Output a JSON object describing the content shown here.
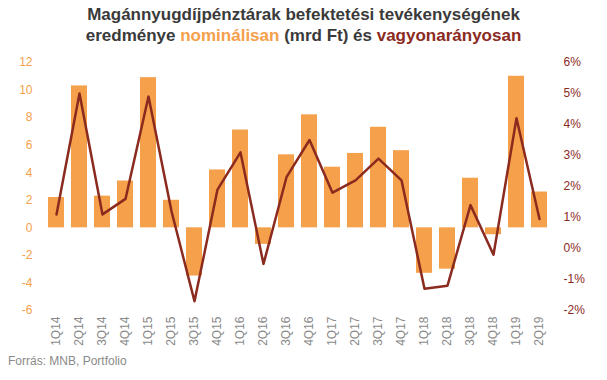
{
  "chart_data": {
    "type": "bar",
    "title": "Magánnyugdíjpénztárak befektetési tevékenységének eredménye nominálisan (mrd Ft) és vagyonarányosan",
    "caption": "Forrás: MNB, Portfolio",
    "categories": [
      "1Q14",
      "2Q14",
      "3Q14",
      "4Q14",
      "1Q15",
      "2Q15",
      "3Q15",
      "4Q15",
      "1Q16",
      "2Q16",
      "3Q16",
      "4Q16",
      "1Q17",
      "2Q17",
      "3Q17",
      "4Q17",
      "1Q18",
      "2Q18",
      "3Q18",
      "4Q18",
      "1Q19",
      "2Q19"
    ],
    "series": [
      {
        "name": "nominálisan",
        "type": "bar",
        "color": "#f5a04a",
        "values": [
          2.2,
          10.3,
          2.3,
          3.4,
          10.9,
          2.0,
          -3.5,
          4.2,
          7.1,
          -1.2,
          5.3,
          8.2,
          4.4,
          5.4,
          7.3,
          5.6,
          -3.3,
          -3.0,
          3.6,
          -0.5,
          11.0,
          2.6
        ]
      },
      {
        "name": "vagyonarányosan",
        "type": "line",
        "axis": "y2",
        "color": "#8b2a1e",
        "values": [
          1.1,
          5.0,
          1.1,
          1.6,
          4.9,
          1.2,
          -1.7,
          1.9,
          3.1,
          -0.5,
          2.3,
          3.5,
          1.8,
          2.2,
          2.9,
          2.2,
          -1.3,
          -1.2,
          1.4,
          -0.2,
          4.2,
          0.95
        ]
      }
    ],
    "ylim": [
      -6,
      12
    ],
    "yticks": [
      -6,
      -4,
      -2,
      0,
      2,
      4,
      6,
      8,
      10,
      12
    ],
    "y2lim": [
      -2,
      6
    ],
    "y2ticks": [
      {
        "value": -2,
        "label": "-2%"
      },
      {
        "value": -1,
        "label": "-1%"
      },
      {
        "value": 0,
        "label": "0%"
      },
      {
        "value": 1,
        "label": "1%"
      },
      {
        "value": 2,
        "label": "2%"
      },
      {
        "value": 3,
        "label": "3%"
      },
      {
        "value": 4,
        "label": "4%"
      },
      {
        "value": 5,
        "label": "5%"
      },
      {
        "value": 6,
        "label": "6%"
      }
    ],
    "grid": false
  }
}
